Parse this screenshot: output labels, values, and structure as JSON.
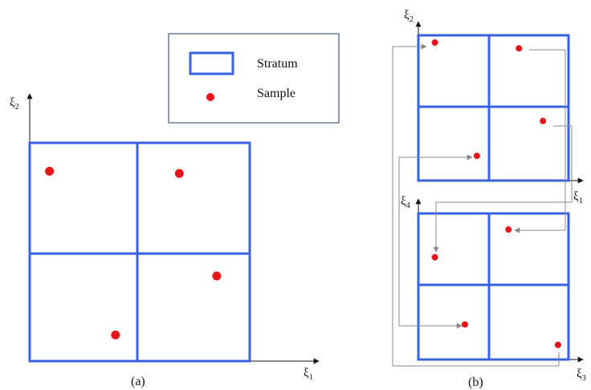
{
  "colors": {
    "stratum": "#3a62e0",
    "sample": "#e8141b",
    "connector": "#8a8a8a",
    "axis": "#111111"
  },
  "legend": {
    "stratum_label": "Stratum",
    "sample_label": "Sample"
  },
  "panel_a": {
    "caption": "(a)",
    "x_axis": {
      "symbol": "ξ",
      "subscript": "1"
    },
    "y_axis": {
      "symbol": "ξ",
      "subscript": "2"
    },
    "grid": "2x2",
    "samples": [
      {
        "x": 0.09,
        "y": 0.87
      },
      {
        "x": 0.68,
        "y": 0.86
      },
      {
        "x": 0.85,
        "y": 0.39
      },
      {
        "x": 0.39,
        "y": 0.12
      }
    ]
  },
  "panel_b_top": {
    "x_axis": {
      "symbol": "ξ",
      "subscript": "1"
    },
    "y_axis": {
      "symbol": "ξ",
      "subscript": "2"
    },
    "grid": "2x2",
    "samples": [
      {
        "x": 0.11,
        "y": 0.95
      },
      {
        "x": 0.67,
        "y": 0.91
      },
      {
        "x": 0.83,
        "y": 0.41
      },
      {
        "x": 0.39,
        "y": 0.17
      }
    ]
  },
  "panel_b_bottom": {
    "caption": "(b)",
    "x_axis": {
      "symbol": "ξ",
      "subscript": "3"
    },
    "y_axis": {
      "symbol": "ξ",
      "subscript": "4"
    },
    "grid": "2x2",
    "samples": [
      {
        "x": 0.6,
        "y": 0.89
      },
      {
        "x": 0.11,
        "y": 0.7
      },
      {
        "x": 0.31,
        "y": 0.24
      },
      {
        "x": 0.93,
        "y": 0.1
      }
    ]
  }
}
